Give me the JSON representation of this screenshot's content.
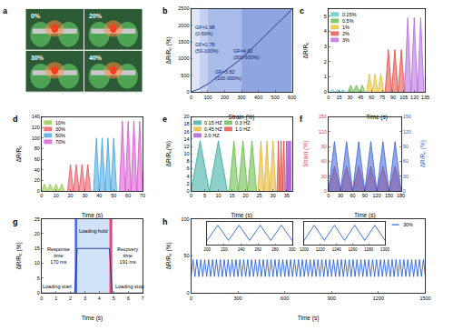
{
  "chart_data": [
    {
      "title": "a",
      "type": "photo",
      "labels": [
        "0%",
        "20%",
        "30%",
        "40%"
      ]
    },
    {
      "title": "b",
      "type": "line",
      "x_label": "Strain (%)",
      "y_label": "ΔR/R₀ (%)",
      "x": [
        0,
        50,
        100,
        300,
        600
      ],
      "values": [
        0,
        99,
        238,
        1002,
        2478
      ],
      "color": "#1c2f8a",
      "xlim": [
        0,
        600
      ],
      "xticks": [
        0,
        100,
        200,
        300,
        400,
        500,
        600
      ],
      "ylim": [
        0,
        2500
      ],
      "yticks": [
        0,
        500,
        1000,
        1500,
        2000,
        2500
      ],
      "regions": [
        {
          "from": 0,
          "to": 50,
          "label": "GF=1.98\n(0-50%)",
          "color": "#dfe6f7"
        },
        {
          "from": 50,
          "to": 100,
          "label": "GF=2.78\n(50-100%)",
          "color": "#c3d0f0"
        },
        {
          "from": 100,
          "to": 300,
          "label": "GF=3.82\n(100-300%)",
          "color": "#a9bbe9"
        },
        {
          "from": 300,
          "to": 600,
          "label": "GF=4.92\n(300-600%)",
          "color": "#8ea5e0"
        }
      ]
    },
    {
      "title": "c",
      "type": "area",
      "x_label": "Time (s)",
      "y_label": "ΔR/R₀",
      "legend": "upper left",
      "xlim": [
        0,
        135
      ],
      "xticks": [
        0,
        15,
        30,
        45,
        60,
        75,
        90,
        105,
        120,
        135
      ],
      "ylim": [
        0,
        5.5
      ],
      "yticks": [
        0,
        1,
        2,
        3,
        4,
        5
      ],
      "series": [
        {
          "name": "0.25%",
          "color": "#4fc9c0",
          "x": [
            2,
            5.7,
            9.3,
            13,
            16.7,
            20.3,
            24
          ],
          "values": [
            0,
            0.15,
            0,
            0.15,
            0,
            0.15,
            0
          ]
        },
        {
          "name": "0.5%",
          "color": "#62b845",
          "x": [
            27,
            31,
            35,
            39,
            43,
            47,
            51
          ],
          "values": [
            0,
            0.45,
            0,
            0.45,
            0,
            0.45,
            0
          ]
        },
        {
          "name": "1%",
          "color": "#e3bf2e",
          "x": [
            53,
            57,
            61,
            65,
            69,
            73,
            77
          ],
          "values": [
            0,
            1.2,
            0,
            1.2,
            0,
            1.2,
            0
          ]
        },
        {
          "name": "2%",
          "color": "#e0463c",
          "x": [
            79,
            83.5,
            88,
            92.5,
            97,
            101.5,
            106
          ],
          "values": [
            0,
            2.8,
            0,
            2.8,
            0,
            2.8,
            0
          ]
        },
        {
          "name": "3%",
          "color": "#b366de",
          "x": [
            106,
            110.5,
            115,
            119.5,
            124,
            128.5,
            133
          ],
          "values": [
            0,
            4.9,
            0,
            4.9,
            0,
            4.9,
            0
          ]
        }
      ]
    },
    {
      "title": "d",
      "type": "area",
      "x_label": "Time (s)",
      "y_label": "ΔR/R₀",
      "legend": "upper left",
      "xlim": [
        0,
        70
      ],
      "xticks": [
        0,
        10,
        20,
        30,
        40,
        50,
        60,
        70
      ],
      "ylim": [
        0,
        140
      ],
      "yticks": [
        0,
        20,
        40,
        60,
        80,
        100,
        120,
        140
      ],
      "series": [
        {
          "name": "10%",
          "color": "#8cc63f",
          "x": [
            0,
            2,
            4,
            6,
            8,
            10,
            12,
            14,
            16
          ],
          "values": [
            0,
            13,
            0,
            13,
            0,
            13,
            0,
            13,
            0
          ]
        },
        {
          "name": "30%",
          "color": "#e8505b",
          "x": [
            18,
            20,
            22,
            24,
            26,
            28,
            30,
            32,
            34
          ],
          "values": [
            0,
            50,
            0,
            50,
            0,
            50,
            0,
            50,
            0
          ]
        },
        {
          "name": "50%",
          "color": "#3fa2e0",
          "x": [
            36,
            38,
            40,
            42,
            44,
            46,
            48,
            50,
            52
          ],
          "values": [
            0,
            100,
            0,
            100,
            0,
            100,
            0,
            100,
            0
          ]
        },
        {
          "name": "70%",
          "color": "#d94fd0",
          "x": [
            54,
            56,
            58,
            60,
            62,
            64,
            66,
            68,
            70
          ],
          "values": [
            0,
            132,
            0,
            132,
            0,
            132,
            0,
            132,
            0
          ]
        }
      ]
    },
    {
      "title": "e",
      "type": "area",
      "x_label": "Time (s)",
      "y_label": "ΔR/R₀(%)",
      "legend": "upper left",
      "xlim": [
        0,
        37
      ],
      "xticks": [
        0,
        5,
        10,
        15,
        20,
        25,
        30,
        35
      ],
      "ylim": [
        0,
        20
      ],
      "yticks": [
        0,
        2,
        4,
        6,
        8,
        10,
        12,
        14,
        16,
        18,
        20
      ],
      "series": [
        {
          "name": "0.15 HZ",
          "color": "#2fa89c",
          "x": [
            0,
            3.3,
            6.7,
            10,
            13.3
          ],
          "values": [
            0,
            13.5,
            0,
            13.5,
            0
          ]
        },
        {
          "name": "0.3 HZ",
          "color": "#5fb83e",
          "x": [
            14,
            15.7,
            17.3,
            19,
            20.7,
            22.3,
            24
          ],
          "values": [
            0,
            13.5,
            0,
            13.5,
            0,
            13.5,
            0
          ]
        },
        {
          "name": "0.45 HZ",
          "color": "#e3b12e",
          "x": [
            24.5,
            25.6,
            26.7,
            27.8,
            28.9,
            30,
            31.1
          ],
          "values": [
            0,
            13.5,
            0,
            13.5,
            0,
            13.5,
            0
          ]
        },
        {
          "name": "1.0 HZ",
          "color": "#e0463c",
          "x": [
            31.5,
            32,
            32.5,
            33,
            33.5,
            34,
            34.5
          ],
          "values": [
            0,
            13.5,
            0,
            13.5,
            0,
            13.5,
            0
          ]
        },
        {
          "name": "2.0 HZ",
          "color": "#a552d6",
          "x": [
            34.7,
            34.95,
            35.2,
            35.45,
            35.7,
            35.95,
            36.2,
            36.45,
            36.7
          ],
          "values": [
            0,
            13.5,
            0,
            13.5,
            0,
            13.5,
            0,
            13.5,
            0
          ]
        }
      ]
    },
    {
      "title": "f",
      "type": "area",
      "x_label": "Time (s)",
      "y_label": "Strain (%)",
      "y2_label": "ΔR/R₀ (%)",
      "xlim": [
        0,
        180
      ],
      "xticks": [
        0,
        30,
        60,
        90,
        120,
        150,
        180
      ],
      "ylim": [
        0,
        150
      ],
      "yticks": [
        0,
        30,
        60,
        90,
        120,
        150
      ],
      "y2lim": [
        0,
        150
      ],
      "y2ticks": [
        0,
        30,
        60,
        90,
        120,
        150
      ],
      "series": [
        {
          "color": "#3b63d9",
          "axis": "y2",
          "x": [
            0,
            15,
            30,
            45,
            60,
            75,
            90,
            105,
            120,
            135,
            150,
            165,
            180
          ],
          "values": [
            0,
            100,
            0,
            100,
            0,
            100,
            0,
            100,
            0,
            100,
            0,
            100,
            0
          ]
        },
        {
          "color": "#e0455a",
          "axis": "y",
          "x": [
            0,
            15,
            30,
            45,
            60,
            75,
            90,
            105,
            120,
            135,
            150,
            165,
            180
          ],
          "values": [
            0,
            50,
            0,
            50,
            0,
            50,
            0,
            50,
            0,
            50,
            0,
            50,
            0
          ]
        }
      ]
    },
    {
      "title": "g",
      "type": "line",
      "x_label": "Time (s)",
      "y_label": "ΔR/R₀ (%)",
      "x": [
        0,
        2.3,
        2.47,
        4.7,
        4.9,
        7
      ],
      "values": [
        0,
        0,
        15,
        15,
        0,
        0
      ],
      "color": "#1f2a80",
      "xlim": [
        0,
        7
      ],
      "xticks": [
        0,
        1,
        2,
        3,
        4,
        5,
        6,
        7
      ],
      "ylim": [
        0,
        25
      ],
      "yticks": [
        0,
        5,
        10,
        15,
        20,
        25
      ],
      "regions": [
        {
          "from": 2.3,
          "to": 2.47,
          "color": "#4f6ee0"
        },
        {
          "from": 2.47,
          "to": 4.7,
          "color": "#cfe2f7"
        },
        {
          "from": 4.7,
          "to": 4.9,
          "color": "#e04a7a"
        }
      ],
      "annotations": [
        "Response\ntime\n170 ms",
        "Loading hold",
        "Recovery\ntime\n191 ms",
        "Loading start",
        "Loading stop"
      ]
    },
    {
      "title": "h",
      "type": "line",
      "x_label": "Time (s)",
      "y_label": "ΔR/R₀ (%)",
      "legend": "upper right",
      "xlim": [
        0,
        1500
      ],
      "xticks": [
        0,
        300,
        600,
        900,
        1200,
        1500
      ],
      "ylim": [
        0,
        100
      ],
      "yticks": [
        0,
        50,
        100
      ],
      "series": [
        {
          "name": "30%",
          "color": "#2a62d6",
          "x": [
            0,
            12.5,
            25,
            37.5,
            50,
            62.5,
            75,
            87.5,
            100,
            112.5,
            125,
            137.5,
            150,
            162.5,
            175,
            187.5,
            200,
            212.5,
            225,
            237.5,
            250,
            262.5,
            275,
            287.5,
            300,
            312.5,
            325,
            337.5,
            350,
            362.5,
            375,
            387.5,
            400,
            412.5,
            425,
            437.5,
            450,
            462.5,
            475,
            487.5,
            500,
            512.5,
            525,
            537.5,
            550,
            562.5,
            575,
            587.5,
            600,
            612.5,
            625,
            637.5,
            650,
            662.5,
            675,
            687.5,
            700,
            712.5,
            725,
            737.5,
            750,
            762.5,
            775,
            787.5,
            800,
            812.5,
            825,
            837.5,
            850,
            862.5,
            875,
            887.5,
            900,
            912.5,
            925,
            937.5,
            950,
            962.5,
            975,
            987.5,
            1000,
            1012.5,
            1025,
            1037.5,
            1050,
            1062.5,
            1075,
            1087.5,
            1100,
            1112.5,
            1125,
            1137.5,
            1150,
            1162.5,
            1175,
            1187.5,
            1200,
            1212.5,
            1225,
            1237.5,
            1250,
            1262.5,
            1275,
            1287.5,
            1300,
            1312.5,
            1325,
            1337.5,
            1350,
            1362.5,
            1375,
            1387.5,
            1400,
            1412.5,
            1425,
            1437.5,
            1450,
            1462.5,
            1475,
            1487.5,
            1500
          ],
          "values": [
            22,
            45,
            22,
            45,
            22,
            45,
            22,
            45,
            22,
            45,
            22,
            45,
            22,
            45,
            22,
            45,
            22,
            45,
            22,
            45,
            22,
            45,
            22,
            45,
            22,
            45,
            22,
            45,
            22,
            45,
            22,
            45,
            22,
            45,
            22,
            45,
            22,
            45,
            22,
            45,
            22,
            45,
            22,
            45,
            22,
            45,
            22,
            45,
            22,
            45,
            22,
            45,
            22,
            45,
            22,
            45,
            22,
            45,
            22,
            45,
            22,
            45,
            22,
            45,
            22,
            45,
            22,
            45,
            22,
            45,
            22,
            45,
            22,
            45,
            22,
            45,
            22,
            45,
            22,
            45,
            22,
            45,
            22,
            45,
            22,
            45,
            22,
            45,
            22,
            45,
            22,
            45,
            22,
            45,
            22,
            45,
            22,
            45,
            22,
            45,
            22,
            45,
            22,
            45,
            22,
            45,
            22,
            45,
            22,
            45,
            22,
            45,
            22,
            45,
            22,
            45,
            22,
            45,
            22,
            45,
            22
          ]
        }
      ],
      "insets": [
        {
          "xlim": [
            200,
            300
          ],
          "xticks": [
            200,
            220,
            240,
            260,
            280,
            300
          ],
          "ylim": [
            15,
            50
          ],
          "tick_labels": "x"
        },
        {
          "xlim": [
            1200,
            1300
          ],
          "xticks": [
            1200,
            1220,
            1240,
            1260,
            1280,
            1300
          ],
          "ylim": [
            15,
            50
          ],
          "tick_labels": "x"
        }
      ]
    }
  ]
}
